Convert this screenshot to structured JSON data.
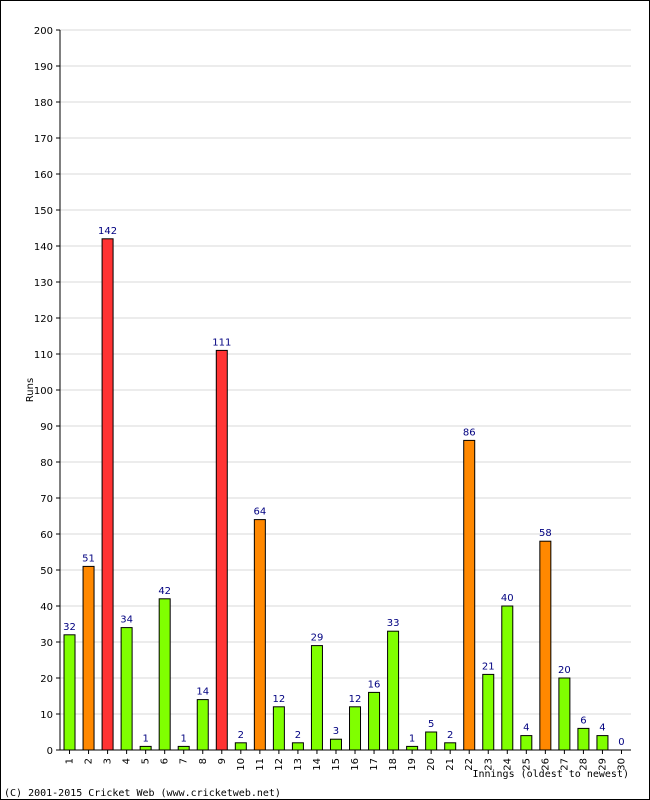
{
  "chart_data": {
    "type": "bar",
    "ylabel": "Runs",
    "xlabel": "Innings (oldest to newest)",
    "ylim": [
      0,
      200
    ],
    "ytick_step": 10,
    "grid": true,
    "categories": [
      "1",
      "2",
      "3",
      "4",
      "5",
      "6",
      "7",
      "8",
      "9",
      "10",
      "11",
      "12",
      "13",
      "14",
      "15",
      "16",
      "17",
      "18",
      "19",
      "20",
      "21",
      "22",
      "23",
      "24",
      "25",
      "26",
      "27",
      "28",
      "29",
      "30"
    ],
    "values": [
      32,
      51,
      142,
      34,
      1,
      42,
      1,
      14,
      111,
      2,
      64,
      12,
      2,
      29,
      3,
      12,
      16,
      33,
      1,
      5,
      2,
      86,
      21,
      40,
      4,
      58,
      20,
      6,
      4,
      0
    ],
    "colors": {
      "under_50": "#80ff00",
      "fifty": "#ff8800",
      "hundred": "#ff3333",
      "label": "#000080",
      "grid": "#d8d8d8"
    }
  },
  "footer": {
    "copyright": "(C) 2001-2015 Cricket Web (www.cricketweb.net)"
  }
}
